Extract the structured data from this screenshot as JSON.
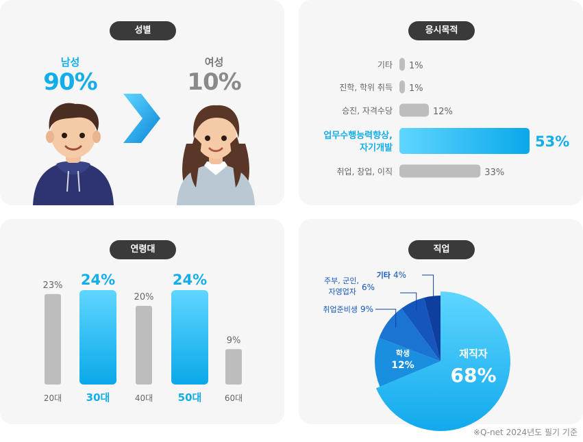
{
  "colors": {
    "accent": "#13aee9",
    "gray_bar": "#bdbdbd",
    "pill_bg": "#3a3a3a",
    "dark_text": "#666666"
  },
  "gender": {
    "title": "성별",
    "male_label": "남성",
    "male_value": "90%",
    "female_label": "여성",
    "female_value": "10%",
    "arrow": "chevron-right-icon"
  },
  "purpose": {
    "title": "응시목적"
  },
  "age": {
    "title": "연령대"
  },
  "job": {
    "title": "직업"
  },
  "footnote": "※Q-net 2024년도 필기 기준",
  "chart_data": [
    {
      "type": "bar",
      "orientation": "horizontal",
      "title": "응시목적",
      "categories": [
        "기타",
        "진학, 학위 취득",
        "승진, 자격수당",
        "업무수행능력향상, 자기개발",
        "취업, 창업, 이직"
      ],
      "values": [
        1,
        1,
        12,
        53,
        33
      ],
      "value_labels": [
        "1%",
        "1%",
        "12%",
        "53%",
        "33%"
      ],
      "highlight": "업무수행능력향상, 자기개발",
      "unit": "%"
    },
    {
      "type": "bar",
      "title": "연령대",
      "categories": [
        "20대",
        "30대",
        "40대",
        "50대",
        "60대"
      ],
      "values": [
        23,
        24,
        20,
        24,
        9
      ],
      "value_labels": [
        "23%",
        "24%",
        "20%",
        "24%",
        "9%"
      ],
      "highlight": [
        "30대",
        "50대"
      ],
      "unit": "%"
    },
    {
      "type": "pie",
      "title": "직업",
      "categories": [
        "재직자",
        "학생",
        "취업준비생",
        "주부, 군인, 자영업자",
        "기타"
      ],
      "values": [
        68,
        12,
        9,
        6,
        4
      ],
      "value_labels": [
        "68%",
        "12%",
        "9%",
        "6%",
        "4%"
      ],
      "unit": "%"
    },
    {
      "type": "bar",
      "title": "성별",
      "categories": [
        "남성",
        "여성"
      ],
      "values": [
        90,
        10
      ],
      "unit": "%"
    }
  ]
}
